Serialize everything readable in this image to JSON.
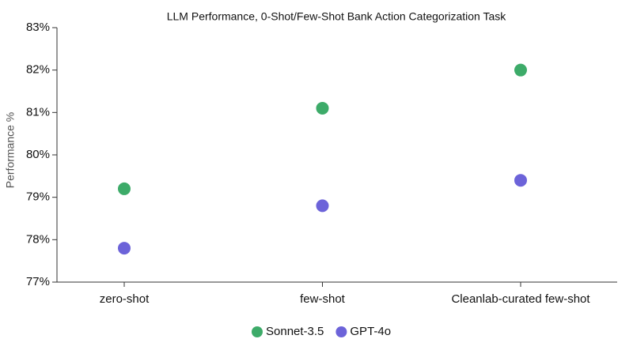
{
  "chart_data": {
    "type": "dot",
    "title": "LLM Performance, 0-Shot/Few-Shot Bank Action Categorization Task",
    "y_label": "Performance %",
    "categories": [
      "zero-shot",
      "few-shot",
      "Cleanlab-curated few-shot"
    ],
    "series": [
      {
        "name": "Sonnet-3.5",
        "color": "#3dab69",
        "values": [
          79.2,
          81.1,
          82.0
        ]
      },
      {
        "name": "GPT-4o",
        "color": "#6c63d9",
        "values": [
          77.8,
          78.8,
          79.4
        ]
      }
    ],
    "ylim": [
      77,
      83
    ],
    "yticks": [
      {
        "value": 77,
        "label": "77%"
      },
      {
        "value": 78,
        "label": "78%"
      },
      {
        "value": 79,
        "label": "79%"
      },
      {
        "value": 80,
        "label": "80%"
      },
      {
        "value": 81,
        "label": "81%"
      },
      {
        "value": 82,
        "label": "82%"
      },
      {
        "value": 83,
        "label": "83%"
      }
    ],
    "legend": "bottom"
  }
}
